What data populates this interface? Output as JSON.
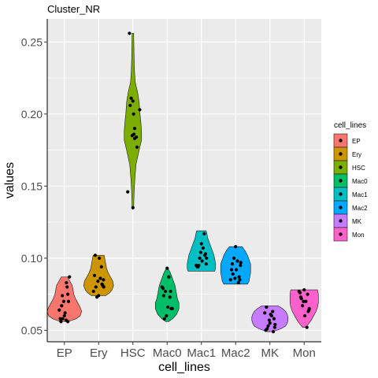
{
  "chart_data": {
    "type": "violin",
    "title": "Cluster_NR",
    "xlabel": "cell_lines",
    "ylabel": "values",
    "ylim": [
      0.042,
      0.266
    ],
    "yticks": [
      0.05,
      0.1,
      0.15,
      0.2,
      0.25
    ],
    "ytick_labels": [
      "0.05",
      "0.10",
      "0.15",
      "0.20",
      "0.25"
    ],
    "grid": true,
    "legend_title": "cell_lines",
    "legend_position": "right",
    "categories": [
      "EP",
      "Ery",
      "HSC",
      "Mac0",
      "Mac1",
      "Mac2",
      "MK",
      "Mon"
    ],
    "colors": [
      "#F8766D",
      "#CD9600",
      "#7CAE00",
      "#00BE67",
      "#00BFC4",
      "#00A9FF",
      "#C77CFF",
      "#FF61CC"
    ],
    "violins": [
      {
        "min": 0.056,
        "max": 0.087,
        "profile": [
          [
            0.056,
            5
          ],
          [
            0.058,
            15
          ],
          [
            0.06,
            20
          ],
          [
            0.063,
            22
          ],
          [
            0.066,
            20
          ],
          [
            0.069,
            17
          ],
          [
            0.072,
            14
          ],
          [
            0.075,
            12
          ],
          [
            0.078,
            11
          ],
          [
            0.081,
            10
          ],
          [
            0.084,
            7
          ],
          [
            0.087,
            4
          ]
        ]
      },
      {
        "min": 0.074,
        "max": 0.102,
        "profile": [
          [
            0.074,
            9
          ],
          [
            0.076,
            14
          ],
          [
            0.078,
            17
          ],
          [
            0.081,
            19
          ],
          [
            0.084,
            18
          ],
          [
            0.087,
            15
          ],
          [
            0.09,
            12
          ],
          [
            0.093,
            10
          ],
          [
            0.096,
            9
          ],
          [
            0.099,
            8
          ],
          [
            0.102,
            7
          ]
        ]
      },
      {
        "min": 0.135,
        "max": 0.256,
        "profile": [
          [
            0.135,
            1
          ],
          [
            0.145,
            1.5
          ],
          [
            0.155,
            2.5
          ],
          [
            0.165,
            4
          ],
          [
            0.175,
            8
          ],
          [
            0.182,
            11
          ],
          [
            0.188,
            11
          ],
          [
            0.195,
            10
          ],
          [
            0.2,
            9
          ],
          [
            0.208,
            8
          ],
          [
            0.215,
            6
          ],
          [
            0.222,
            3
          ],
          [
            0.23,
            2
          ],
          [
            0.24,
            1.5
          ],
          [
            0.256,
            1
          ]
        ]
      },
      {
        "min": 0.056,
        "max": 0.093,
        "profile": [
          [
            0.056,
            2
          ],
          [
            0.058,
            7
          ],
          [
            0.061,
            12
          ],
          [
            0.065,
            15
          ],
          [
            0.069,
            15
          ],
          [
            0.072,
            13
          ],
          [
            0.075,
            12
          ],
          [
            0.078,
            11
          ],
          [
            0.081,
            10
          ],
          [
            0.084,
            8
          ],
          [
            0.087,
            6
          ],
          [
            0.09,
            4
          ],
          [
            0.093,
            1
          ]
        ]
      },
      {
        "min": 0.091,
        "max": 0.119,
        "profile": [
          [
            0.091,
            17
          ],
          [
            0.093,
            18
          ],
          [
            0.096,
            18
          ],
          [
            0.099,
            17
          ],
          [
            0.102,
            16
          ],
          [
            0.105,
            14
          ],
          [
            0.108,
            12
          ],
          [
            0.111,
            10
          ],
          [
            0.114,
            8
          ],
          [
            0.117,
            7
          ],
          [
            0.119,
            6
          ]
        ]
      },
      {
        "min": 0.082,
        "max": 0.108,
        "profile": [
          [
            0.082,
            15
          ],
          [
            0.084,
            17
          ],
          [
            0.087,
            18
          ],
          [
            0.09,
            19
          ],
          [
            0.093,
            19
          ],
          [
            0.096,
            19
          ],
          [
            0.099,
            17
          ],
          [
            0.102,
            15
          ],
          [
            0.105,
            12
          ],
          [
            0.108,
            8
          ]
        ]
      },
      {
        "min": 0.049,
        "max": 0.067,
        "profile": [
          [
            0.049,
            3
          ],
          [
            0.051,
            14
          ],
          [
            0.053,
            20
          ],
          [
            0.055,
            22
          ],
          [
            0.057,
            23
          ],
          [
            0.059,
            23
          ],
          [
            0.061,
            22
          ],
          [
            0.063,
            20
          ],
          [
            0.065,
            16
          ],
          [
            0.067,
            10
          ]
        ]
      },
      {
        "min": 0.052,
        "max": 0.078,
        "profile": [
          [
            0.052,
            2
          ],
          [
            0.054,
            5
          ],
          [
            0.057,
            9
          ],
          [
            0.06,
            12
          ],
          [
            0.063,
            15
          ],
          [
            0.066,
            17
          ],
          [
            0.069,
            18
          ],
          [
            0.072,
            18
          ],
          [
            0.075,
            18
          ],
          [
            0.078,
            17
          ]
        ]
      }
    ],
    "points": [
      {
        "x": [
          -0.15,
          -0.1,
          -0.05,
          0.0,
          0.05,
          0.1,
          0.12,
          -0.08,
          0.02,
          0.08,
          -0.12,
          0.15,
          0.06,
          -0.02,
          0.1,
          -0.06
        ],
        "y": [
          0.064,
          0.056,
          0.058,
          0.06,
          0.057,
          0.056,
          0.07,
          0.067,
          0.062,
          0.08,
          0.058,
          0.087,
          0.083,
          0.07,
          0.075,
          0.074
        ]
      },
      {
        "x": [
          -0.15,
          -0.1,
          -0.05,
          0.0,
          0.05,
          0.1,
          0.15,
          -0.08,
          0.08,
          0.12,
          0.02,
          -0.12,
          0.14,
          -0.02
        ],
        "y": [
          0.077,
          0.102,
          0.073,
          0.074,
          0.086,
          0.082,
          0.08,
          0.08,
          0.094,
          0.081,
          0.1,
          0.088,
          0.085,
          0.084
        ]
      },
      {
        "x": [
          -0.1,
          -0.05,
          0.0,
          0.05,
          0.1,
          -0.08,
          0.02,
          0.12,
          0.2,
          0.03,
          -0.02,
          0.05,
          -0.15,
          0.0
        ],
        "y": [
          0.256,
          0.211,
          0.209,
          0.19,
          0.184,
          0.206,
          0.2,
          0.177,
          0.203,
          0.186,
          0.185,
          0.183,
          0.146,
          0.135
        ]
      },
      {
        "x": [
          -0.15,
          -0.1,
          -0.05,
          0.0,
          0.05,
          0.1,
          0.12,
          -0.08,
          0.02,
          0.08,
          -0.12,
          0.15,
          -0.02
        ],
        "y": [
          0.08,
          0.074,
          0.077,
          0.093,
          0.087,
          0.077,
          0.065,
          0.058,
          0.066,
          0.073,
          0.079,
          0.065,
          0.06
        ]
      },
      {
        "x": [
          -0.15,
          -0.1,
          -0.05,
          0.0,
          0.05,
          0.1,
          0.15,
          -0.08,
          0.08,
          0.12,
          0.02,
          -0.12,
          0.14,
          -0.02
        ],
        "y": [
          0.095,
          0.094,
          0.1,
          0.11,
          0.107,
          0.102,
          0.1,
          0.095,
          0.117,
          0.103,
          0.098,
          0.094,
          0.096,
          0.104
        ]
      },
      {
        "x": [
          -0.15,
          -0.1,
          -0.05,
          0.0,
          0.05,
          0.1,
          0.15,
          -0.08,
          0.08,
          0.12,
          0.02,
          -0.12,
          0.14,
          -0.02
        ],
        "y": [
          0.085,
          0.096,
          0.1,
          0.108,
          0.098,
          0.087,
          0.097,
          0.089,
          0.083,
          0.085,
          0.092,
          0.092,
          0.095,
          0.086
        ]
      },
      {
        "x": [
          -0.15,
          -0.1,
          -0.05,
          0.0,
          0.05,
          0.1,
          0.15,
          -0.08,
          0.08,
          0.12,
          0.02,
          -0.12,
          0.14,
          -0.02
        ],
        "y": [
          0.062,
          0.066,
          0.053,
          0.055,
          0.06,
          0.049,
          0.054,
          0.051,
          0.063,
          0.058,
          0.061,
          0.05,
          0.052,
          0.057
        ]
      },
      {
        "x": [
          -0.15,
          -0.1,
          -0.05,
          0.0,
          0.05,
          0.1,
          0.15,
          -0.08,
          0.08,
          0.12,
          0.02,
          -0.12,
          0.14,
          -0.02
        ],
        "y": [
          0.077,
          0.073,
          0.067,
          0.078,
          0.07,
          0.075,
          0.065,
          0.072,
          0.052,
          0.063,
          0.06,
          0.076,
          0.064,
          0.07
        ]
      }
    ]
  }
}
